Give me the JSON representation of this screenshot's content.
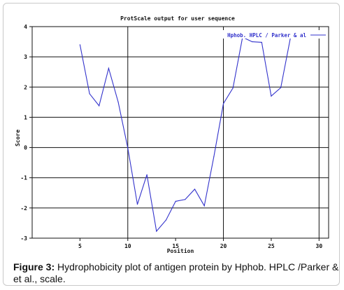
{
  "figure": {
    "caption_label": "Figure 3:",
    "caption_text": "Hydrophobicity plot of antigen protein by  Hphob. HPLC /Parker & et al., scale."
  },
  "chart_data": {
    "type": "line",
    "title": "ProtScale output for user sequence",
    "xlabel": "Position",
    "ylabel": "Score",
    "xlim": [
      0,
      31
    ],
    "ylim": [
      -3,
      4
    ],
    "xticks": [
      5,
      10,
      15,
      20,
      25,
      30
    ],
    "yticks": [
      -3,
      -2,
      -1,
      0,
      1,
      2,
      3,
      4
    ],
    "x_gridlines": [
      10,
      20,
      30
    ],
    "y_gridlines": [
      4,
      3,
      2,
      1,
      0,
      -1,
      -2
    ],
    "grid": true,
    "legend_position": "top-right",
    "series": [
      {
        "name": "Hphob. HPLC / Parker & al",
        "color": "#3333cc",
        "x": [
          5,
          6,
          7,
          8,
          9,
          10,
          11,
          12,
          13,
          14,
          15,
          16,
          17,
          18,
          19,
          20,
          21,
          22,
          23,
          24,
          25,
          26,
          27
        ],
        "y": [
          3.4,
          1.78,
          1.38,
          2.62,
          1.5,
          -0.02,
          -1.88,
          -0.9,
          -2.77,
          -2.4,
          -1.78,
          -1.72,
          -1.38,
          -1.93,
          -0.3,
          1.45,
          1.97,
          3.65,
          3.5,
          3.48,
          1.7,
          1.98,
          3.62
        ]
      }
    ]
  }
}
